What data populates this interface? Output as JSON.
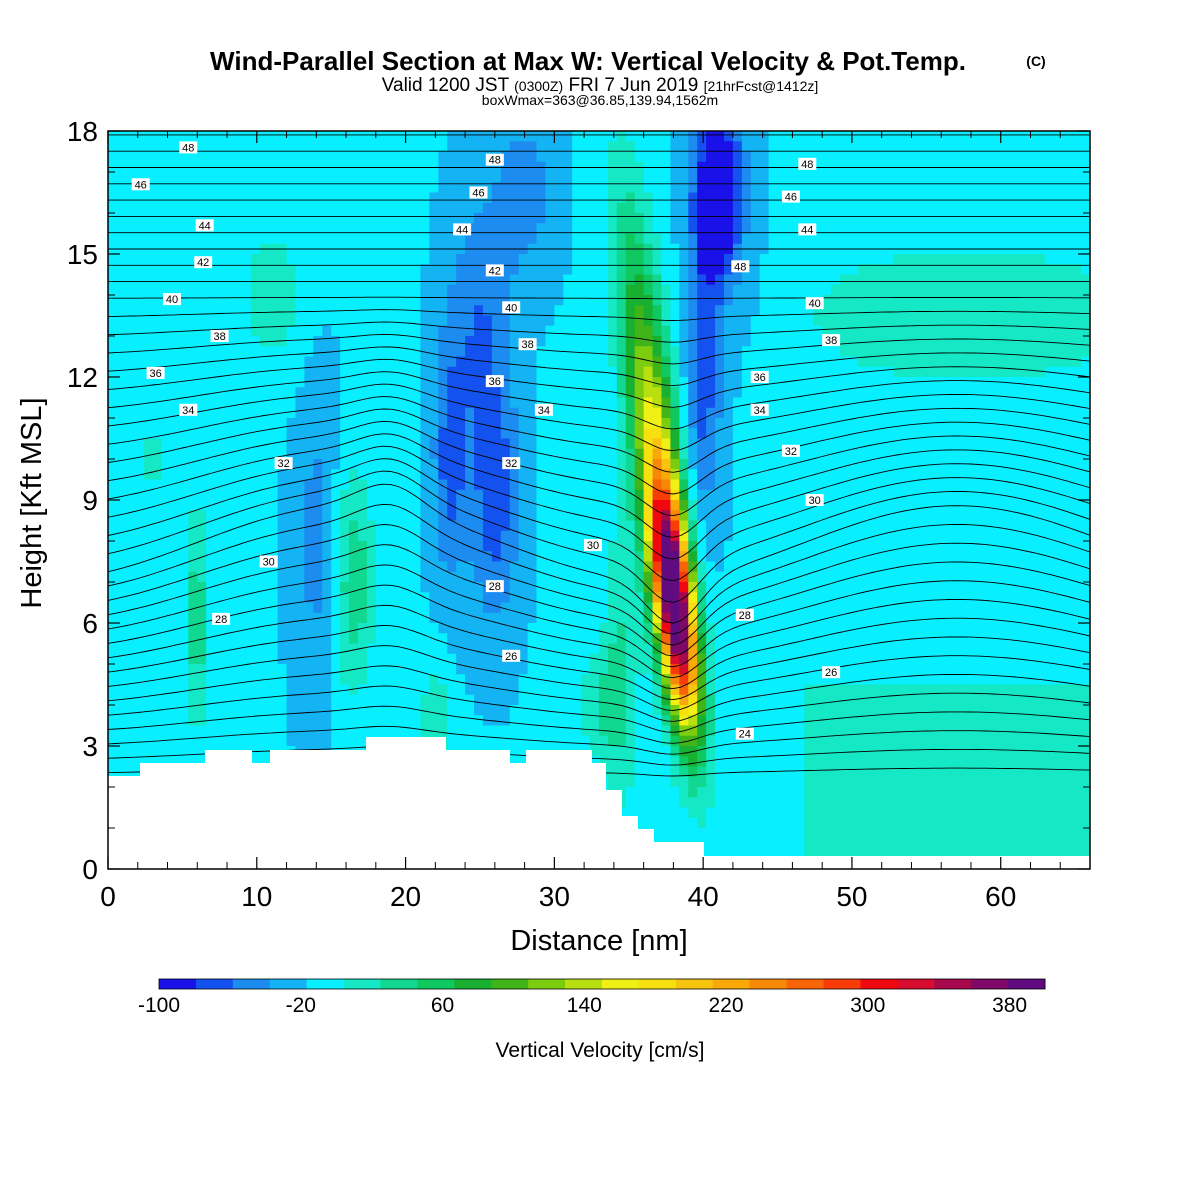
{
  "title": {
    "main": "Wind-Parallel Section at Max W: Vertical Velocity & Pot.Temp.",
    "copyright": "(C)",
    "valid_prefix": "Valid 1200 JST",
    "valid_utc": "(0300Z)",
    "valid_date": "FRI 7 Jun 2019",
    "forecast": "[21hrFcst@1412z]",
    "boxwmax": "boxWmax=363@36.85,139.94,1562m"
  },
  "chart_data": {
    "type": "heatmap",
    "xlabel": "Distance [nm]",
    "ylabel": "Height [Kft MSL]",
    "xlim": [
      0,
      66
    ],
    "ylim": [
      0,
      18
    ],
    "x_ticks": [
      "0",
      "10",
      "20",
      "30",
      "40",
      "50",
      "60"
    ],
    "y_ticks": [
      "0",
      "3",
      "6",
      "9",
      "12",
      "15",
      "18"
    ],
    "colorbar": {
      "label": "Vertical Velocity [cm/s]",
      "tick_labels": [
        "-100",
        "-20",
        "60",
        "140",
        "220",
        "300",
        "380"
      ],
      "tick_values": [
        -100,
        -20,
        60,
        140,
        220,
        300,
        380
      ],
      "range": [
        -100,
        400
      ],
      "colors": [
        "#1a10e8",
        "#1452f0",
        "#1c8cf0",
        "#14b4f4",
        "#08f0ff",
        "#14e8c4",
        "#10d890",
        "#10c860",
        "#18b030",
        "#40b418",
        "#7ccc10",
        "#b8e010",
        "#f0f014",
        "#f8e010",
        "#f8c410",
        "#f8a808",
        "#f88808",
        "#f86408",
        "#f83c08",
        "#f00810",
        "#d80c30",
        "#a8084c",
        "#800868",
        "#600c80"
      ]
    },
    "velocity_features": [
      {
        "name": "main updraft core",
        "x": 38.0,
        "y": 6.5,
        "value": 363
      },
      {
        "name": "updraft plume",
        "x": 37.0,
        "y": 11.0,
        "value": 140
      },
      {
        "name": "aloft updraft",
        "x": 35.5,
        "y": 15.5,
        "value": 60
      },
      {
        "name": "downdraft aloft",
        "x": 41.0,
        "y": 16.5,
        "value": -100
      },
      {
        "name": "downdraft",
        "x": 26.0,
        "y": 9.0,
        "value": -60
      },
      {
        "name": "downdraft",
        "x": 23.0,
        "y": 10.0,
        "value": -60
      },
      {
        "name": "weak updraft",
        "x": 16.5,
        "y": 7.0,
        "value": 40
      },
      {
        "name": "weak updraft",
        "x": 6.0,
        "y": 6.0,
        "value": 50
      },
      {
        "name": "weak updraft",
        "x": 34.5,
        "y": 5.0,
        "value": 50
      }
    ],
    "contour_labels": [
      {
        "text": "48",
        "x": 5.4,
        "y": 17.6
      },
      {
        "text": "46",
        "x": 2.2,
        "y": 16.7
      },
      {
        "text": "44",
        "x": 6.5,
        "y": 15.7
      },
      {
        "text": "42",
        "x": 6.4,
        "y": 14.8
      },
      {
        "text": "40",
        "x": 4.3,
        "y": 13.9
      },
      {
        "text": "38",
        "x": 7.5,
        "y": 13.0
      },
      {
        "text": "36",
        "x": 3.2,
        "y": 12.1
      },
      {
        "text": "34",
        "x": 5.4,
        "y": 11.2
      },
      {
        "text": "32",
        "x": 11.8,
        "y": 9.9
      },
      {
        "text": "30",
        "x": 10.8,
        "y": 7.5
      },
      {
        "text": "28",
        "x": 7.6,
        "y": 6.1
      },
      {
        "text": "48",
        "x": 26.0,
        "y": 17.3
      },
      {
        "text": "46",
        "x": 24.9,
        "y": 16.5
      },
      {
        "text": "44",
        "x": 23.8,
        "y": 15.6
      },
      {
        "text": "42",
        "x": 26.0,
        "y": 14.6
      },
      {
        "text": "40",
        "x": 27.1,
        "y": 13.7
      },
      {
        "text": "38",
        "x": 28.2,
        "y": 12.8
      },
      {
        "text": "36",
        "x": 26.0,
        "y": 11.9
      },
      {
        "text": "34",
        "x": 29.3,
        "y": 11.2
      },
      {
        "text": "32",
        "x": 27.1,
        "y": 9.9
      },
      {
        "text": "30",
        "x": 32.6,
        "y": 7.9
      },
      {
        "text": "28",
        "x": 26.0,
        "y": 6.9
      },
      {
        "text": "26",
        "x": 27.1,
        "y": 5.2
      },
      {
        "text": "48",
        "x": 47.0,
        "y": 17.2
      },
      {
        "text": "46",
        "x": 45.9,
        "y": 16.4
      },
      {
        "text": "44",
        "x": 47.0,
        "y": 15.6
      },
      {
        "text": "48",
        "x": 42.5,
        "y": 14.7
      },
      {
        "text": "40",
        "x": 47.5,
        "y": 13.8
      },
      {
        "text": "38",
        "x": 48.6,
        "y": 12.9
      },
      {
        "text": "36",
        "x": 43.8,
        "y": 12.0
      },
      {
        "text": "34",
        "x": 43.8,
        "y": 11.2
      },
      {
        "text": "32",
        "x": 45.9,
        "y": 10.2
      },
      {
        "text": "30",
        "x": 47.5,
        "y": 9.0
      },
      {
        "text": "28",
        "x": 42.8,
        "y": 6.2
      },
      {
        "text": "26",
        "x": 48.6,
        "y": 4.8
      },
      {
        "text": "24",
        "x": 42.8,
        "y": 3.3
      }
    ]
  }
}
